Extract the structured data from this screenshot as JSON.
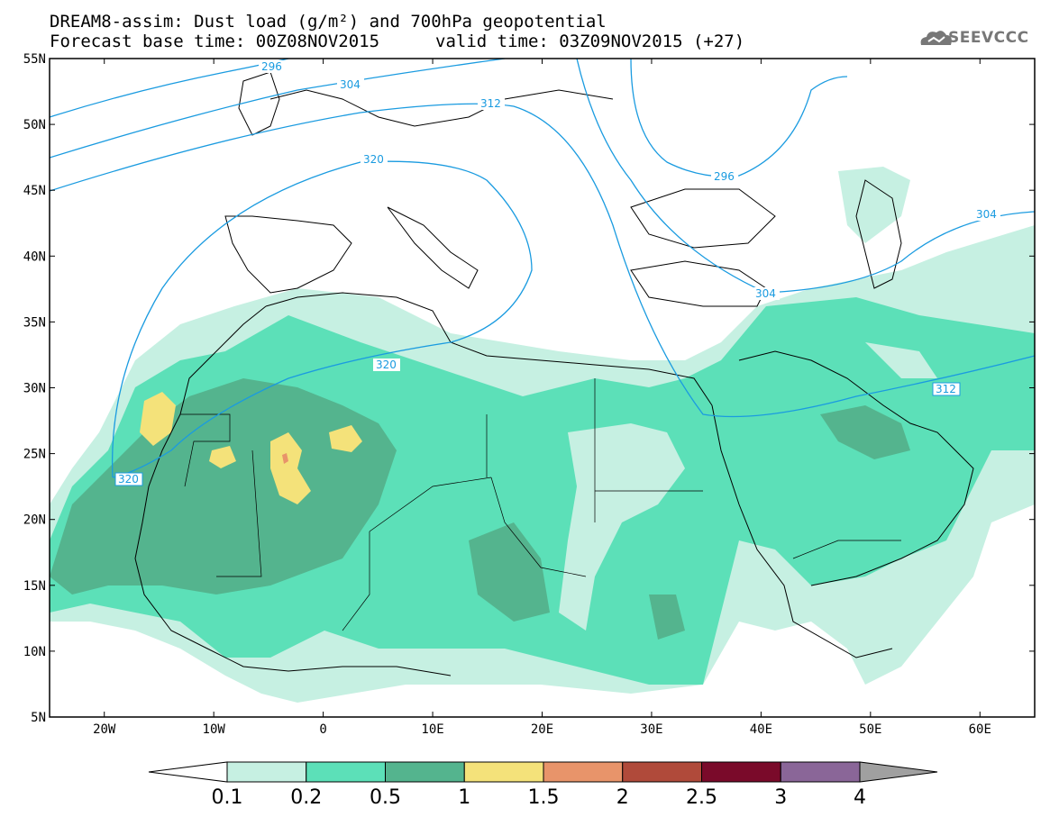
{
  "title": {
    "line1": "DREAM8-assim: Dust load (g/m²) and 700hPa geopotential",
    "line2": "Forecast base time: 00Z08NOV2015",
    "line2_valid": "valid time: 03Z09NOV2015 (+27)"
  },
  "logo": {
    "icon": "cloud-icon",
    "text": "SEEVCCC"
  },
  "map": {
    "lat_ticks": [
      "55N",
      "50N",
      "45N",
      "40N",
      "35N",
      "30N",
      "25N",
      "20N",
      "15N",
      "10N",
      "5N"
    ],
    "lon_ticks": [
      "20W",
      "10W",
      "0",
      "10E",
      "20E",
      "30E",
      "40E",
      "50E",
      "60E"
    ],
    "lon_range": [
      -25,
      65
    ],
    "lat_range": [
      5,
      55
    ],
    "contour_labels": [
      "296",
      "304",
      "312",
      "320",
      "320",
      "320",
      "304",
      "296",
      "304",
      "312"
    ]
  },
  "colorbar": {
    "levels": [
      "0.1",
      "0.2",
      "0.5",
      "1",
      "1.5",
      "2",
      "2.5",
      "3",
      "4"
    ],
    "colors": [
      "#c6f0e2",
      "#5ce0b8",
      "#54b48e",
      "#f4e27a",
      "#e8946a",
      "#b04a3a",
      "#7a0a2a",
      "#8a6698"
    ],
    "under_color": "#ffffff",
    "over_color": "#a0a0a0"
  },
  "colors": {
    "contour": "#1a9be0",
    "dust_light": "#c6f0e2",
    "dust_mid": "#5ce0b8",
    "dust_dark": "#54b48e",
    "dust_yellow": "#f4e27a",
    "dust_red": "#e8946a"
  }
}
